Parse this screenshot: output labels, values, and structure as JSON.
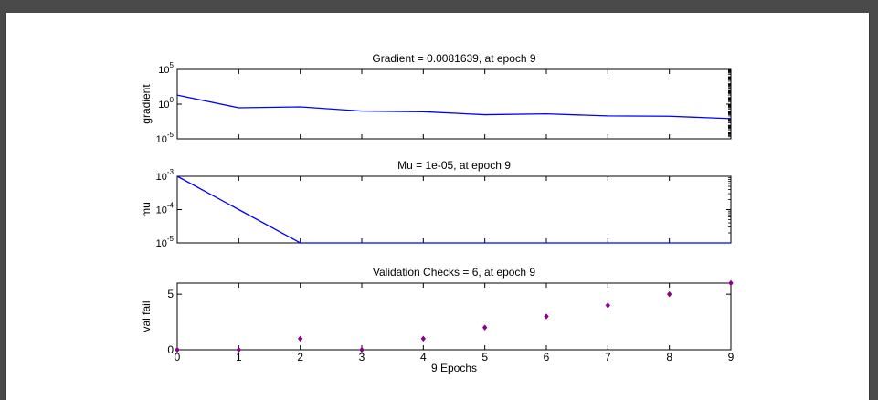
{
  "chart_data": [
    {
      "type": "line",
      "title": "Gradient = 0.0081639, at epoch 9",
      "ylabel": "gradient",
      "yscale": "log",
      "ylim": [
        1e-05,
        100000
      ],
      "xlim": [
        0,
        9
      ],
      "yticks": [
        {
          "v": 100000,
          "base": "10",
          "exp": "5"
        },
        {
          "v": 1,
          "base": "10",
          "exp": "0"
        },
        {
          "v": 1e-05,
          "base": "10",
          "exp": "-5"
        }
      ],
      "x": [
        0,
        1,
        2,
        3,
        4,
        5,
        6,
        7,
        8,
        9
      ],
      "y": [
        20,
        0.3,
        0.4,
        0.1,
        0.08,
        0.03,
        0.04,
        0.02,
        0.018,
        0.0081639
      ],
      "color": "#0000ff"
    },
    {
      "type": "line",
      "title": "Mu = 1e-05, at epoch 9",
      "ylabel": "mu",
      "yscale": "log",
      "ylim": [
        1e-05,
        0.001
      ],
      "xlim": [
        0,
        9
      ],
      "yticks": [
        {
          "v": 0.001,
          "base": "10",
          "exp": "-3"
        },
        {
          "v": 0.0001,
          "base": "10",
          "exp": "-4"
        },
        {
          "v": 1e-05,
          "base": "10",
          "exp": "-5"
        }
      ],
      "x": [
        0,
        1,
        2,
        3,
        4,
        5,
        6,
        7,
        8,
        9
      ],
      "y": [
        0.001,
        0.0001,
        1e-05,
        1e-05,
        1e-05,
        1e-05,
        1e-05,
        1e-05,
        1e-05,
        1e-05
      ],
      "color": "#0000ff"
    },
    {
      "type": "scatter",
      "title": "Validation Checks = 6, at epoch 9",
      "ylabel": "val fail",
      "xlabel": "9 Epochs",
      "yscale": "linear",
      "ylim": [
        0,
        6
      ],
      "xlim": [
        0,
        9
      ],
      "yticks": [
        {
          "v": 5,
          "base": "5",
          "exp": ""
        },
        {
          "v": 0,
          "base": "0",
          "exp": ""
        }
      ],
      "xticks": [
        "0",
        "1",
        "2",
        "3",
        "4",
        "5",
        "6",
        "7",
        "8",
        "9"
      ],
      "x": [
        0,
        1,
        2,
        3,
        4,
        5,
        6,
        7,
        8,
        9
      ],
      "y": [
        0,
        0,
        1,
        0,
        1,
        2,
        3,
        4,
        5,
        6
      ],
      "color": "#8b008b"
    }
  ]
}
